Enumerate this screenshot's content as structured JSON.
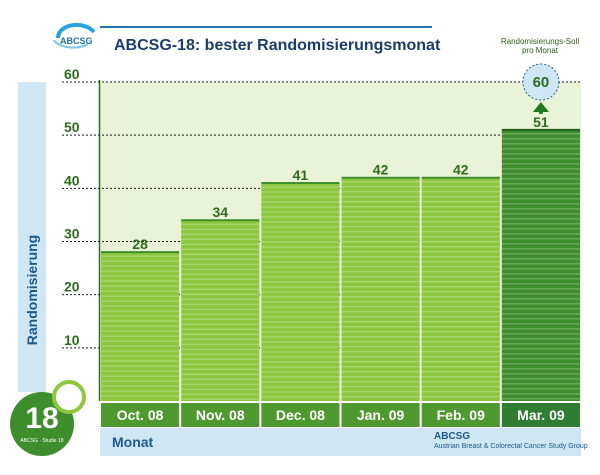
{
  "header": {
    "logo_text": "ABCSG",
    "title": "ABCSG-18: bester Randomisierungsmonat",
    "target_caption_line1": "Randomisierungs-Soll",
    "target_caption_line2": "pro Monat"
  },
  "footer": {
    "org_short": "ABCSG",
    "org_long": "Austrian Breast & Colorectal Cancer Study Group",
    "badge_number": "18",
    "badge_sub": "ABCSG · Studie 18"
  },
  "colors": {
    "bar_light": "#8dc63f",
    "bar_highlight": "#3e8e2e",
    "label_green": "#2f6b1e",
    "axis_blue": "#1b5a8d",
    "bg_fill": "#e9f3d8"
  },
  "chart_data": {
    "type": "bar",
    "title": "ABCSG-18: bester Randomisierungsmonat",
    "xlabel": "Monat",
    "ylabel": "Randomisierung",
    "categories": [
      "Oct. 08",
      "Nov. 08",
      "Dec. 08",
      "Jan. 09",
      "Feb. 09",
      "Mar. 09"
    ],
    "values": [
      28,
      34,
      41,
      42,
      42,
      51
    ],
    "ylim": [
      0,
      60
    ],
    "yticks": [
      10,
      20,
      30,
      40,
      50,
      60
    ],
    "highlight_index": 5,
    "target_value": 60,
    "target_label": "60",
    "grid": true
  }
}
